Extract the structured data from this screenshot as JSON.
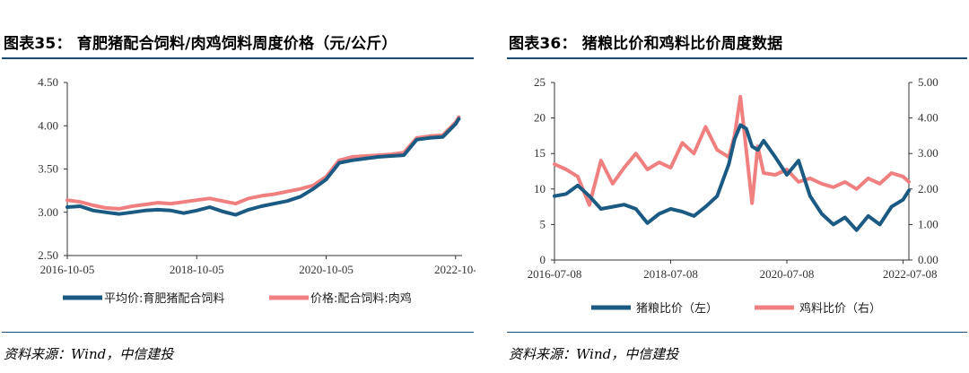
{
  "left": {
    "title": "图表35： 育肥猪配合饲料/肉鸡饲料周度价格（元/公斤）",
    "source": "资料来源：Wind，中信建投",
    "chart_data": {
      "type": "line",
      "title": "育肥猪配合饲料/肉鸡饲料周度价格（元/公斤）",
      "x_ticks": [
        "2016-10-05",
        "2018-10-05",
        "2020-10-05",
        "2022-10-"
      ],
      "y_ticks": [
        "2.50",
        "3.00",
        "3.50",
        "4.00",
        "4.50"
      ],
      "ylim": [
        2.5,
        4.5
      ],
      "xlim": [
        0,
        6.1
      ],
      "series": [
        {
          "name": "平均价:育肥猪配合饲料",
          "color": "#1b5a82",
          "x": [
            0,
            0.2,
            0.4,
            0.6,
            0.8,
            1.0,
            1.2,
            1.4,
            1.6,
            1.8,
            2.0,
            2.2,
            2.4,
            2.6,
            2.8,
            3.0,
            3.2,
            3.4,
            3.6,
            3.8,
            4.0,
            4.2,
            4.4,
            4.6,
            4.8,
            5.0,
            5.2,
            5.4,
            5.6,
            5.8,
            6.0,
            6.05
          ],
          "values": [
            3.06,
            3.07,
            3.02,
            3.0,
            2.98,
            3.0,
            3.02,
            3.03,
            3.02,
            2.99,
            3.02,
            3.06,
            3.01,
            2.97,
            3.03,
            3.07,
            3.1,
            3.13,
            3.18,
            3.27,
            3.38,
            3.57,
            3.6,
            3.62,
            3.64,
            3.65,
            3.66,
            3.84,
            3.86,
            3.87,
            4.02,
            4.08
          ]
        },
        {
          "name": "价格:配合饲料:肉鸡",
          "color": "#f08080",
          "x": [
            0,
            0.2,
            0.4,
            0.6,
            0.8,
            1.0,
            1.2,
            1.4,
            1.6,
            1.8,
            2.0,
            2.2,
            2.4,
            2.6,
            2.8,
            3.0,
            3.2,
            3.4,
            3.6,
            3.8,
            4.0,
            4.2,
            4.4,
            4.6,
            4.8,
            5.0,
            5.2,
            5.4,
            5.6,
            5.8,
            6.0,
            6.05
          ],
          "values": [
            3.14,
            3.12,
            3.08,
            3.05,
            3.04,
            3.07,
            3.09,
            3.11,
            3.1,
            3.12,
            3.14,
            3.16,
            3.13,
            3.1,
            3.16,
            3.19,
            3.21,
            3.24,
            3.27,
            3.31,
            3.41,
            3.6,
            3.64,
            3.65,
            3.66,
            3.67,
            3.69,
            3.86,
            3.88,
            3.89,
            4.04,
            4.1
          ]
        }
      ]
    }
  },
  "right": {
    "title": "图表36： 猪粮比价和鸡料比价周度数据",
    "source": "资料来源：Wind，中信建投",
    "chart_data": {
      "type": "line",
      "title": "猪粮比价和鸡料比价周度数据",
      "x_ticks": [
        "2016-07-08",
        "2018-07-08",
        "2020-07-08",
        "2022-07-08"
      ],
      "y_left_ticks": [
        "0",
        "5",
        "10",
        "15",
        "20",
        "25"
      ],
      "y_right_ticks": [
        "0.00",
        "1.00",
        "2.00",
        "3.00",
        "4.00",
        "5.00"
      ],
      "ylim_left": [
        0,
        25
      ],
      "ylim_right": [
        0,
        5
      ],
      "xlim": [
        0,
        6.1
      ],
      "series": [
        {
          "name": "猪粮比价（左）",
          "axis": "left",
          "color": "#1b5a82",
          "x": [
            0,
            0.2,
            0.4,
            0.6,
            0.8,
            1.0,
            1.2,
            1.4,
            1.6,
            1.8,
            2.0,
            2.2,
            2.4,
            2.6,
            2.8,
            3.0,
            3.1,
            3.2,
            3.3,
            3.4,
            3.5,
            3.6,
            3.8,
            4.0,
            4.2,
            4.4,
            4.6,
            4.8,
            5.0,
            5.2,
            5.4,
            5.6,
            5.8,
            6.0,
            6.1
          ],
          "values": [
            9.0,
            9.3,
            10.5,
            9.0,
            7.2,
            7.5,
            7.8,
            7.2,
            5.2,
            6.5,
            7.2,
            6.8,
            6.2,
            7.5,
            9.0,
            13.5,
            17.0,
            19.0,
            18.5,
            16.0,
            15.5,
            16.8,
            14.5,
            12.0,
            14.0,
            9.0,
            6.5,
            5.0,
            6.0,
            4.2,
            6.2,
            5.0,
            7.5,
            8.5,
            9.8
          ]
        },
        {
          "name": "鸡料比价（右）",
          "axis": "right",
          "color": "#f08080",
          "x": [
            0,
            0.2,
            0.4,
            0.6,
            0.8,
            1.0,
            1.2,
            1.4,
            1.6,
            1.8,
            2.0,
            2.2,
            2.4,
            2.6,
            2.8,
            3.0,
            3.1,
            3.2,
            3.3,
            3.4,
            3.5,
            3.6,
            3.8,
            4.0,
            4.2,
            4.4,
            4.6,
            4.8,
            5.0,
            5.2,
            5.4,
            5.6,
            5.8,
            6.0,
            6.1
          ],
          "values": [
            2.7,
            2.55,
            2.35,
            1.55,
            2.8,
            2.15,
            2.6,
            3.0,
            2.55,
            2.75,
            2.6,
            3.3,
            3.0,
            3.75,
            3.1,
            2.9,
            3.5,
            4.6,
            3.1,
            1.6,
            3.2,
            2.45,
            2.4,
            2.55,
            2.2,
            2.3,
            2.15,
            2.05,
            2.2,
            2.0,
            2.3,
            2.15,
            2.45,
            2.35,
            2.2
          ]
        }
      ]
    }
  }
}
